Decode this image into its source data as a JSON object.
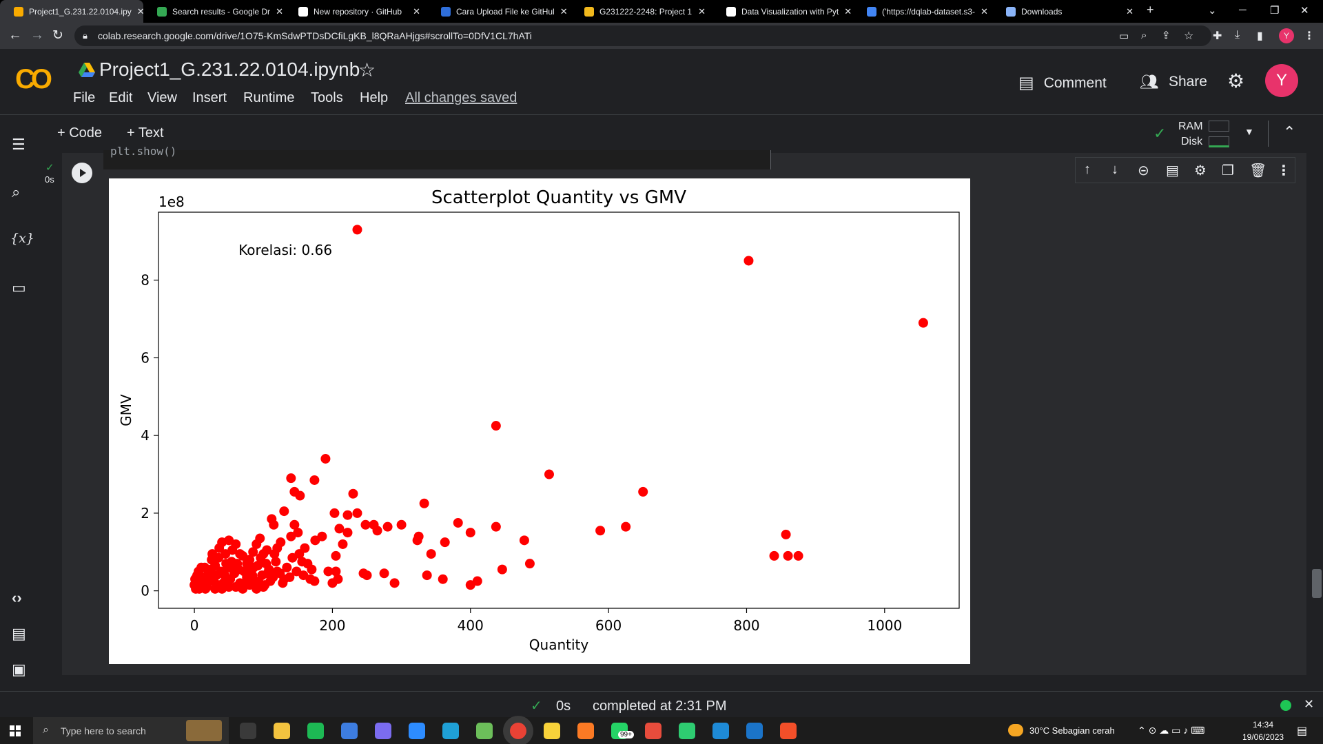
{
  "browser": {
    "tabs": [
      {
        "title": "Project1_G.231.22.0104.ipy",
        "icon": "colab-icon",
        "color": "#f9ab00"
      },
      {
        "title": "Search results - Google Dr",
        "icon": "drive-icon",
        "color": "#34a853"
      },
      {
        "title": "New repository · GitHub",
        "icon": "github-icon",
        "color": "#ffffff"
      },
      {
        "title": "Cara Upload File ke GitHul",
        "icon": "blog-icon",
        "color": "#2f6fdb"
      },
      {
        "title": "G231222-2248: Project 1",
        "icon": "moodle-icon",
        "color": "#f2b91d"
      },
      {
        "title": "Data Visualization with Pyt",
        "icon": "datacamp-icon",
        "color": "#ffffff"
      },
      {
        "title": "('https://dqlab-dataset.s3-",
        "icon": "google-icon",
        "color": "#4285f4"
      },
      {
        "title": "Downloads",
        "icon": "download-icon",
        "color": "#8ab4f8"
      }
    ],
    "new_tab": "+",
    "url": "colab.research.google.com/drive/1O75-KmSdwPTDsDCfiLgKB_l8QRaAHjgs#scrollTo=0DfV1CL7hATi",
    "profile_initial": "Y"
  },
  "colab": {
    "logo": "CO",
    "notebook_name": "Project1_G.231.22.0104.ipynb",
    "menu": [
      "File",
      "Edit",
      "View",
      "Insert",
      "Runtime",
      "Tools",
      "Help"
    ],
    "saved_status": "All changes saved",
    "comment_label": "Comment",
    "share_label": "Share",
    "avatar_initial": "Y",
    "add_code": "+ Code",
    "add_text": "+ Text",
    "ram_label": "RAM",
    "disk_label": "Disk",
    "cell_exec_time": "0s",
    "code_snippet": "plt.show()"
  },
  "status": {
    "check": "✓",
    "time": "0s",
    "text": "completed at 2:31 PM"
  },
  "taskbar": {
    "search_placeholder": "Type here to search",
    "weather": "30°C  Sebagian cerah",
    "time": "14:34",
    "date": "19/06/2023",
    "notif_badge": "99+"
  },
  "chart_data": {
    "type": "scatter",
    "title": "Scatterplot Quantity vs GMV",
    "xlabel": "Quantity",
    "ylabel": "GMV",
    "offset_label": "1e8",
    "annotation": "Korelasi: 0.66",
    "xlim": [
      -52,
      1108
    ],
    "ylim": [
      -0.45,
      9.75
    ],
    "xticks": [
      0,
      200,
      400,
      600,
      800,
      1000
    ],
    "yticks": [
      0,
      2,
      4,
      6,
      8
    ],
    "color": "#ff0000",
    "grid": false,
    "points": [
      [
        236,
        9.3
      ],
      [
        803,
        8.5
      ],
      [
        1056,
        6.9
      ],
      [
        437,
        4.25
      ],
      [
        514,
        3.0
      ],
      [
        190,
        3.4
      ],
      [
        650,
        2.55
      ],
      [
        140,
        2.9
      ],
      [
        174,
        2.85
      ],
      [
        145,
        2.55
      ],
      [
        153,
        2.45
      ],
      [
        230,
        2.5
      ],
      [
        333,
        2.25
      ],
      [
        236,
        2.0
      ],
      [
        203,
        2.0
      ],
      [
        222,
        1.95
      ],
      [
        400,
        1.5
      ],
      [
        382,
        1.75
      ],
      [
        437,
        1.65
      ],
      [
        625,
        1.65
      ],
      [
        588,
        1.55
      ],
      [
        857,
        1.45
      ],
      [
        478,
        1.3
      ],
      [
        860,
        0.9
      ],
      [
        875,
        0.9
      ],
      [
        840,
        0.9
      ],
      [
        486,
        0.7
      ],
      [
        446,
        0.55
      ],
      [
        410,
        0.25
      ],
      [
        400,
        0.15
      ],
      [
        360,
        0.3
      ],
      [
        337,
        0.4
      ],
      [
        343,
        0.95
      ],
      [
        363,
        1.25
      ],
      [
        323,
        1.3
      ],
      [
        325,
        1.4
      ],
      [
        300,
        1.7
      ],
      [
        280,
        1.65
      ],
      [
        260,
        1.7
      ],
      [
        265,
        1.55
      ],
      [
        248,
        1.7
      ],
      [
        222,
        1.5
      ],
      [
        210,
        1.6
      ],
      [
        205,
        0.9
      ],
      [
        205,
        0.5
      ],
      [
        208,
        0.3
      ],
      [
        194,
        0.5
      ],
      [
        200,
        0.2
      ],
      [
        290,
        0.2
      ],
      [
        275,
        0.45
      ],
      [
        245,
        0.45
      ],
      [
        250,
        0.4
      ],
      [
        215,
        1.2
      ],
      [
        185,
        1.4
      ],
      [
        175,
        1.3
      ],
      [
        160,
        1.1
      ],
      [
        156,
        0.75
      ],
      [
        170,
        0.55
      ],
      [
        174,
        0.25
      ],
      [
        150,
        1.5
      ],
      [
        145,
        1.7
      ],
      [
        130,
        2.05
      ],
      [
        140,
        1.4
      ],
      [
        125,
        1.25
      ],
      [
        120,
        1.1
      ],
      [
        112,
        1.85
      ],
      [
        115,
        1.7
      ],
      [
        105,
        1.05
      ],
      [
        100,
        0.95
      ],
      [
        95,
        1.35
      ],
      [
        90,
        1.2
      ],
      [
        80,
        0.8
      ],
      [
        85,
        1.0
      ],
      [
        70,
        0.9
      ],
      [
        60,
        1.2
      ],
      [
        55,
        1.05
      ],
      [
        50,
        1.3
      ],
      [
        45,
        0.95
      ],
      [
        40,
        1.25
      ],
      [
        35,
        0.85
      ],
      [
        30,
        0.65
      ],
      [
        25,
        0.8
      ],
      [
        20,
        0.45
      ],
      [
        15,
        0.6
      ],
      [
        10,
        0.35
      ],
      [
        5,
        0.2
      ],
      [
        2,
        0.05
      ],
      [
        8,
        0.1
      ],
      [
        12,
        0.15
      ],
      [
        18,
        0.1
      ],
      [
        22,
        0.3
      ],
      [
        28,
        0.25
      ],
      [
        32,
        0.4
      ],
      [
        38,
        0.5
      ],
      [
        42,
        0.2
      ],
      [
        48,
        0.6
      ],
      [
        52,
        0.3
      ],
      [
        58,
        0.45
      ],
      [
        62,
        0.7
      ],
      [
        66,
        0.2
      ],
      [
        72,
        0.5
      ],
      [
        76,
        0.35
      ],
      [
        82,
        0.55
      ],
      [
        88,
        0.25
      ],
      [
        92,
        0.65
      ],
      [
        98,
        0.4
      ],
      [
        102,
        0.15
      ],
      [
        108,
        0.55
      ],
      [
        114,
        0.35
      ],
      [
        118,
        0.75
      ],
      [
        124,
        0.45
      ],
      [
        128,
        0.2
      ],
      [
        134,
        0.6
      ],
      [
        138,
        0.35
      ],
      [
        142,
        0.85
      ],
      [
        148,
        0.5
      ],
      [
        152,
        0.95
      ],
      [
        158,
        0.4
      ],
      [
        164,
        0.7
      ],
      [
        168,
        0.3
      ],
      [
        3,
        0.35
      ],
      [
        6,
        0.5
      ],
      [
        14,
        0.25
      ],
      [
        24,
        0.55
      ],
      [
        34,
        0.15
      ],
      [
        44,
        0.4
      ],
      [
        54,
        0.75
      ],
      [
        64,
        0.55
      ],
      [
        74,
        0.15
      ],
      [
        84,
        0.4
      ],
      [
        94,
        0.2
      ],
      [
        104,
        0.7
      ],
      [
        110,
        0.25
      ],
      [
        120,
        0.5
      ],
      [
        130,
        0.3
      ],
      [
        26,
        0.95
      ],
      [
        36,
        1.1
      ],
      [
        46,
        0.7
      ],
      [
        56,
        0.55
      ],
      [
        66,
        0.95
      ],
      [
        76,
        0.7
      ],
      [
        86,
        0.6
      ],
      [
        96,
        0.85
      ],
      [
        106,
        0.45
      ],
      [
        116,
        0.95
      ],
      [
        10,
        0.6
      ],
      [
        16,
        0.05
      ],
      [
        30,
        0.05
      ],
      [
        40,
        0.05
      ],
      [
        50,
        0.1
      ],
      [
        60,
        0.1
      ],
      [
        70,
        0.05
      ],
      [
        80,
        0.15
      ],
      [
        90,
        0.05
      ],
      [
        100,
        0.1
      ],
      [
        0,
        0.15
      ],
      [
        1,
        0.3
      ],
      [
        4,
        0.4
      ],
      [
        7,
        0.05
      ],
      [
        9,
        0.25
      ]
    ]
  }
}
